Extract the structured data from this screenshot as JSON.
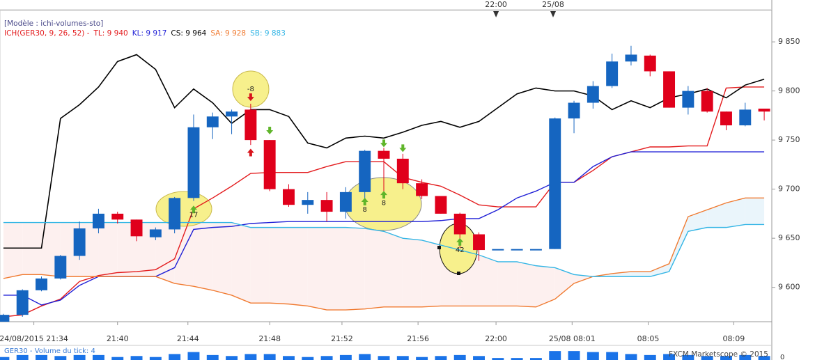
{
  "header": {
    "model": "[Modèle : ichi-volumes-sto]",
    "indicator": "ICH(GER30, 9, 26, 52) -"
  },
  "chart_data": {
    "type": "candlestick",
    "xlim": [
      -0.18,
      40.4
    ],
    "xticks": [
      {
        "value": 1.6,
        "label": "24/08/2015 21:34"
      },
      {
        "value": 6,
        "label": "21:40"
      },
      {
        "value": 9.7,
        "label": "21:44"
      },
      {
        "value": 14,
        "label": "21:48"
      },
      {
        "value": 17.8,
        "label": "21:52"
      },
      {
        "value": 21.8,
        "label": "21:56"
      },
      {
        "value": 25.9,
        "label": "22:00"
      },
      {
        "value": 29.9,
        "label": "25/08 08:01"
      },
      {
        "value": 33.9,
        "label": "08:05"
      },
      {
        "value": 38.4,
        "label": "08:09"
      }
    ],
    "top_ticks": [
      {
        "value": 25.9,
        "label": "22:00"
      },
      {
        "value": 28.9,
        "label": "25/08"
      }
    ],
    "ylim": [
      9565,
      9882
    ],
    "yticks": [
      {
        "value": 9600,
        "label": "9 600"
      },
      {
        "value": 9650,
        "label": "9 650"
      },
      {
        "value": 9700,
        "label": "9 700"
      },
      {
        "value": 9750,
        "label": "9 750"
      },
      {
        "value": 9800,
        "label": "9 800"
      },
      {
        "value": 9850,
        "label": "9 850"
      }
    ],
    "up_color": "#1565c0",
    "down_color": "#e0001b",
    "open": [
      9565,
      9572,
      9597,
      9609,
      9632,
      9660,
      9675,
      9669,
      9651,
      9659,
      9691,
      9763,
      9774,
      9781,
      9750,
      9700,
      9684,
      9689,
      9677,
      9697,
      9739,
      9731,
      9706,
      9693,
      9675,
      9654,
      9639,
      9639,
      9639,
      9639,
      9772,
      9788,
      9805,
      9830,
      9836,
      9820,
      9783,
      9800,
      9779,
      9765,
      9782
    ],
    "high": [
      9573,
      9598,
      9611,
      9633,
      9667,
      9680,
      9677,
      9669,
      9661,
      9692,
      9776,
      9778,
      9781,
      9787,
      9750,
      9705,
      9697,
      9697,
      9702,
      9740,
      9742,
      9736,
      9710,
      9693,
      9676,
      9656,
      9639,
      9639,
      9639,
      9773,
      9790,
      9810,
      9838,
      9846,
      9837,
      9820,
      9805,
      9803,
      9779,
      9788,
      9782
    ],
    "low": [
      9565,
      9570,
      9596,
      9608,
      9628,
      9655,
      9665,
      9647,
      9648,
      9655,
      9688,
      9751,
      9756,
      9745,
      9698,
      9682,
      9675,
      9667,
      9670,
      9690,
      9698,
      9700,
      9690,
      9675,
      9640,
      9627,
      9639,
      9639,
      9639,
      9639,
      9757,
      9782,
      9803,
      9826,
      9815,
      9783,
      9776,
      9778,
      9760,
      9764,
      9770
    ],
    "close": [
      9572,
      9597,
      9609,
      9632,
      9660,
      9675,
      9669,
      9652,
      9659,
      9691,
      9763,
      9774,
      9779,
      9750,
      9700,
      9684,
      9689,
      9677,
      9697,
      9739,
      9731,
      9706,
      9693,
      9675,
      9654,
      9638,
      9639,
      9639,
      9639,
      9772,
      9788,
      9805,
      9830,
      9837,
      9820,
      9783,
      9800,
      9779,
      9765,
      9781,
      9779
    ],
    "lines": [
      {
        "name": "TL: 9 940",
        "color": "#e31a1c",
        "values": [
          9570,
          9572,
          9581,
          9588,
          9606,
          9612,
          9615,
          9616,
          9618,
          9629,
          9680,
          9691,
          9703,
          9716,
          9717,
          9717,
          9717,
          9723,
          9728,
          9728,
          9728,
          9712,
          9707,
          9703,
          9694,
          9684,
          9682,
          9682,
          9682,
          9707,
          9707,
          9719,
          9733,
          9738,
          9743,
          9743,
          9744,
          9744,
          9803,
          9804,
          9804
        ]
      },
      {
        "name": "KL: 9 917",
        "color": "#1f1fd6",
        "values": [
          9592,
          9592,
          9582,
          9587,
          9602,
          9611,
          9611,
          9611,
          9611,
          9620,
          9659,
          9661,
          9662,
          9665,
          9666,
          9667,
          9667,
          9667,
          9667,
          9667,
          9667,
          9667,
          9667,
          9668,
          9670,
          9670,
          9679,
          9691,
          9698,
          9707,
          9707,
          9723,
          9733,
          9738,
          9738,
          9738,
          9738,
          9738,
          9738,
          9738,
          9738
        ]
      },
      {
        "name": "CS: 9 964",
        "color": "#000000",
        "values": [
          9640,
          9640,
          9640,
          9772,
          9786,
          9804,
          9830,
          9837,
          9822,
          9783,
          9802,
          9788,
          9767,
          9781,
          9781,
          9774,
          9747,
          9742,
          9752,
          9754,
          9752,
          9758,
          9765,
          9769,
          9763,
          9769,
          9783,
          9797,
          9803,
          9800,
          9800,
          9795,
          9781,
          9790,
          9783,
          9793,
          9797,
          9802,
          9793,
          9806,
          9812
        ]
      },
      {
        "name": "SA: 9 928",
        "color": "#f07a30",
        "values": [
          9609,
          9613,
          9613,
          9611,
          9611,
          9611,
          9611,
          9611,
          9611,
          9604,
          9601,
          9597,
          9592,
          9584,
          9584,
          9583,
          9581,
          9577,
          9577,
          9578,
          9580,
          9580,
          9580,
          9581,
          9581,
          9581,
          9581,
          9581,
          9580,
          9588,
          9604,
          9611,
          9614,
          9616,
          9616,
          9624,
          9672,
          9679,
          9686,
          9691,
          9691
        ]
      },
      {
        "name": "SB: 9 883",
        "color": "#33b5e5",
        "values": [
          9666,
          9666,
          9666,
          9666,
          9666,
          9666,
          9666,
          9666,
          9666,
          9666,
          9666,
          9666,
          9666,
          9661,
          9661,
          9661,
          9661,
          9661,
          9661,
          9660,
          9657,
          9650,
          9648,
          9643,
          9638,
          9633,
          9626,
          9626,
          9622,
          9620,
          9613,
          9611,
          9611,
          9611,
          9611,
          9616,
          9657,
          9661,
          9661,
          9664,
          9664
        ]
      }
    ],
    "cloud": {
      "series": [
        3,
        4
      ],
      "colors": [
        "#eaf5fb",
        "#fdf0ef"
      ]
    },
    "annotations": [
      {
        "x": 13,
        "y": 9802,
        "label": "-8"
      },
      {
        "x": 10,
        "y": 9674,
        "label": "17"
      },
      {
        "x": 19,
        "y": 9679,
        "label": "8"
      },
      {
        "x": 20,
        "y": 9686,
        "label": "8"
      },
      {
        "x": 24,
        "y": 9638,
        "label": "42"
      }
    ],
    "annotation_color": "#f7f08c",
    "signals": [
      {
        "x": 13,
        "y": 9794,
        "dir": "down",
        "color": "#d8141c"
      },
      {
        "x": 13,
        "y": 9737,
        "dir": "up",
        "color": "#d8141c"
      },
      {
        "x": 10,
        "y": 9679,
        "dir": "up",
        "color": "#5fb52a"
      },
      {
        "x": 14,
        "y": 9760,
        "dir": "down",
        "color": "#5fb52a"
      },
      {
        "x": 19,
        "y": 9687,
        "dir": "up",
        "color": "#5fb52a"
      },
      {
        "x": 20,
        "y": 9694,
        "dir": "up",
        "color": "#5fb52a"
      },
      {
        "x": 20,
        "y": 9747,
        "dir": "down",
        "color": "#5fb52a"
      },
      {
        "x": 21,
        "y": 9742,
        "dir": "down",
        "color": "#5fb52a"
      },
      {
        "x": 24,
        "y": 9646,
        "dir": "up",
        "color": "#5fb52a"
      }
    ],
    "volume": {
      "title": "GER30 - Volume du tick: 4",
      "color": "#1a73e8",
      "ylim": [
        0,
        14
      ],
      "yticks": [
        0
      ],
      "values": [
        3,
        5,
        5,
        4,
        5,
        5,
        3,
        4,
        3,
        6,
        8,
        5,
        4,
        6,
        6,
        4,
        3,
        4,
        5,
        6,
        4,
        4,
        3,
        4,
        5,
        4,
        2,
        2,
        2,
        9,
        9,
        8,
        8,
        6,
        5,
        6,
        5,
        4,
        4,
        5,
        4
      ]
    },
    "credit": "FXCM Marketscope © 2015"
  }
}
